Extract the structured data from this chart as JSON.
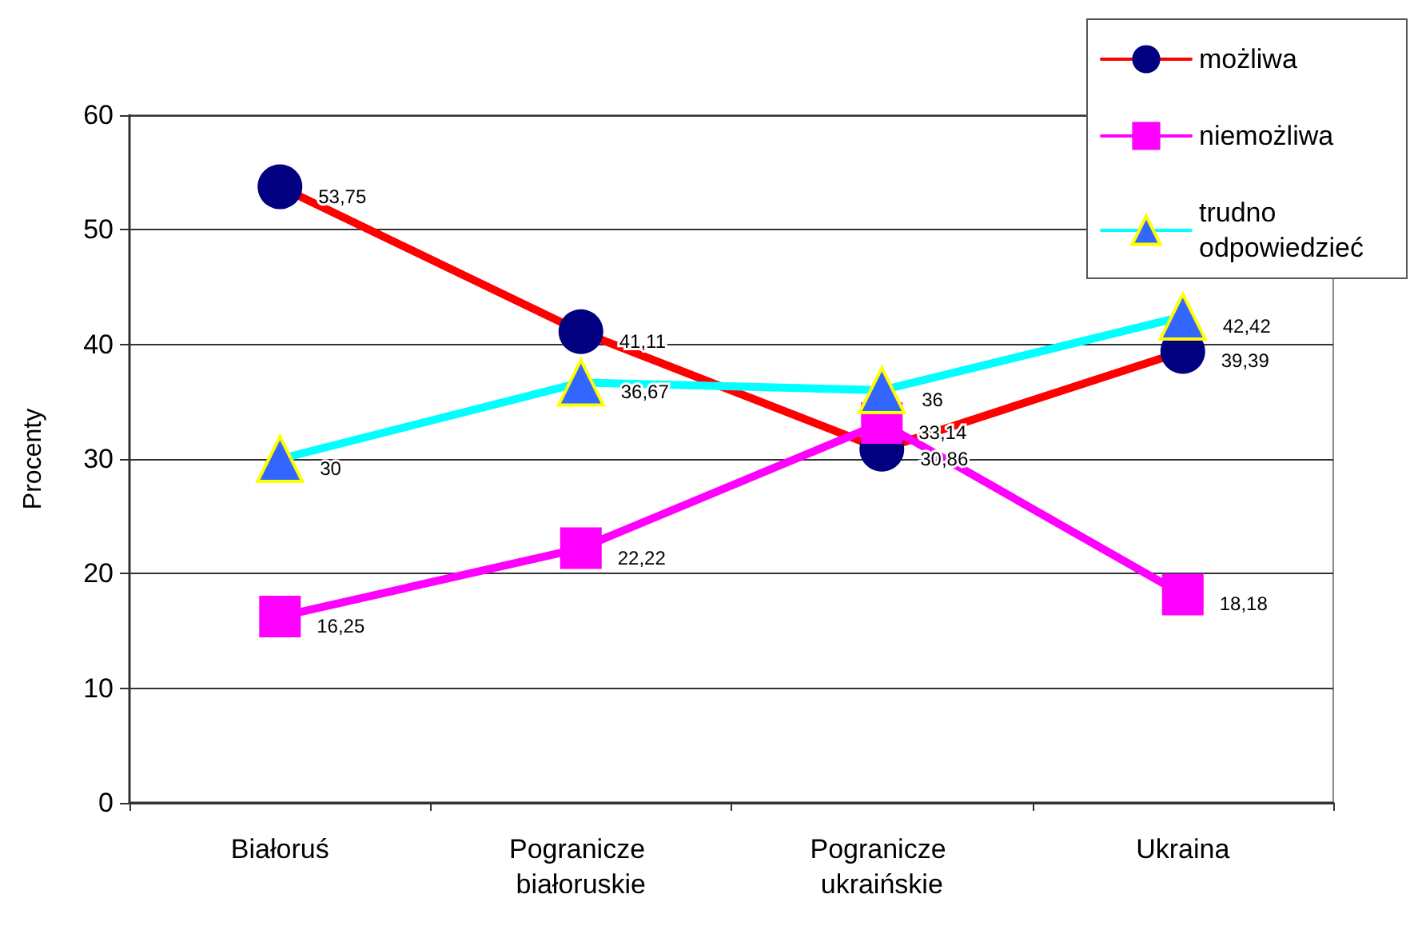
{
  "chart_data": {
    "type": "line",
    "categories": [
      "Białoruś",
      "Pogranicze białoruskie",
      "Pogranicze ukraińskie",
      "Ukraina"
    ],
    "ylabel": "Procenty",
    "series": [
      {
        "name": "możliwa",
        "color": "#ff0000",
        "colors": [
          "#000080",
          "#000080",
          "#000080",
          "#000080"
        ],
        "marker": "circle",
        "values": [
          53.75,
          41.11,
          30.86,
          39.39
        ],
        "value_labels": [
          "53,75",
          "41,11",
          "30,86",
          "39,39"
        ]
      },
      {
        "name": "niemożliwa",
        "color": "#ff00ff",
        "colors": [
          "#ff00ff",
          "#ff00ff",
          "#ff00ff",
          "#ff00ff"
        ],
        "marker": "square",
        "values": [
          16.25,
          22.22,
          33.14,
          18.18
        ],
        "value_labels": [
          "16,25",
          "22,22",
          "33,14",
          "18,18"
        ]
      },
      {
        "name": "trudno odpowiedzieć",
        "color": "#00ffff",
        "colors": [
          "#3366ff",
          "#3366ff",
          "#3366ff",
          "#3366ff"
        ],
        "marker": "triangle",
        "values": [
          30,
          36.67,
          36,
          42.42
        ],
        "value_labels": [
          "30",
          "36,67",
          "36",
          "42,42"
        ]
      }
    ],
    "ylim": [
      0,
      60
    ],
    "yticks": [
      0,
      10,
      20,
      30,
      40,
      50,
      60
    ],
    "grid": "y",
    "legend": "top right",
    "line_style": "solid"
  }
}
